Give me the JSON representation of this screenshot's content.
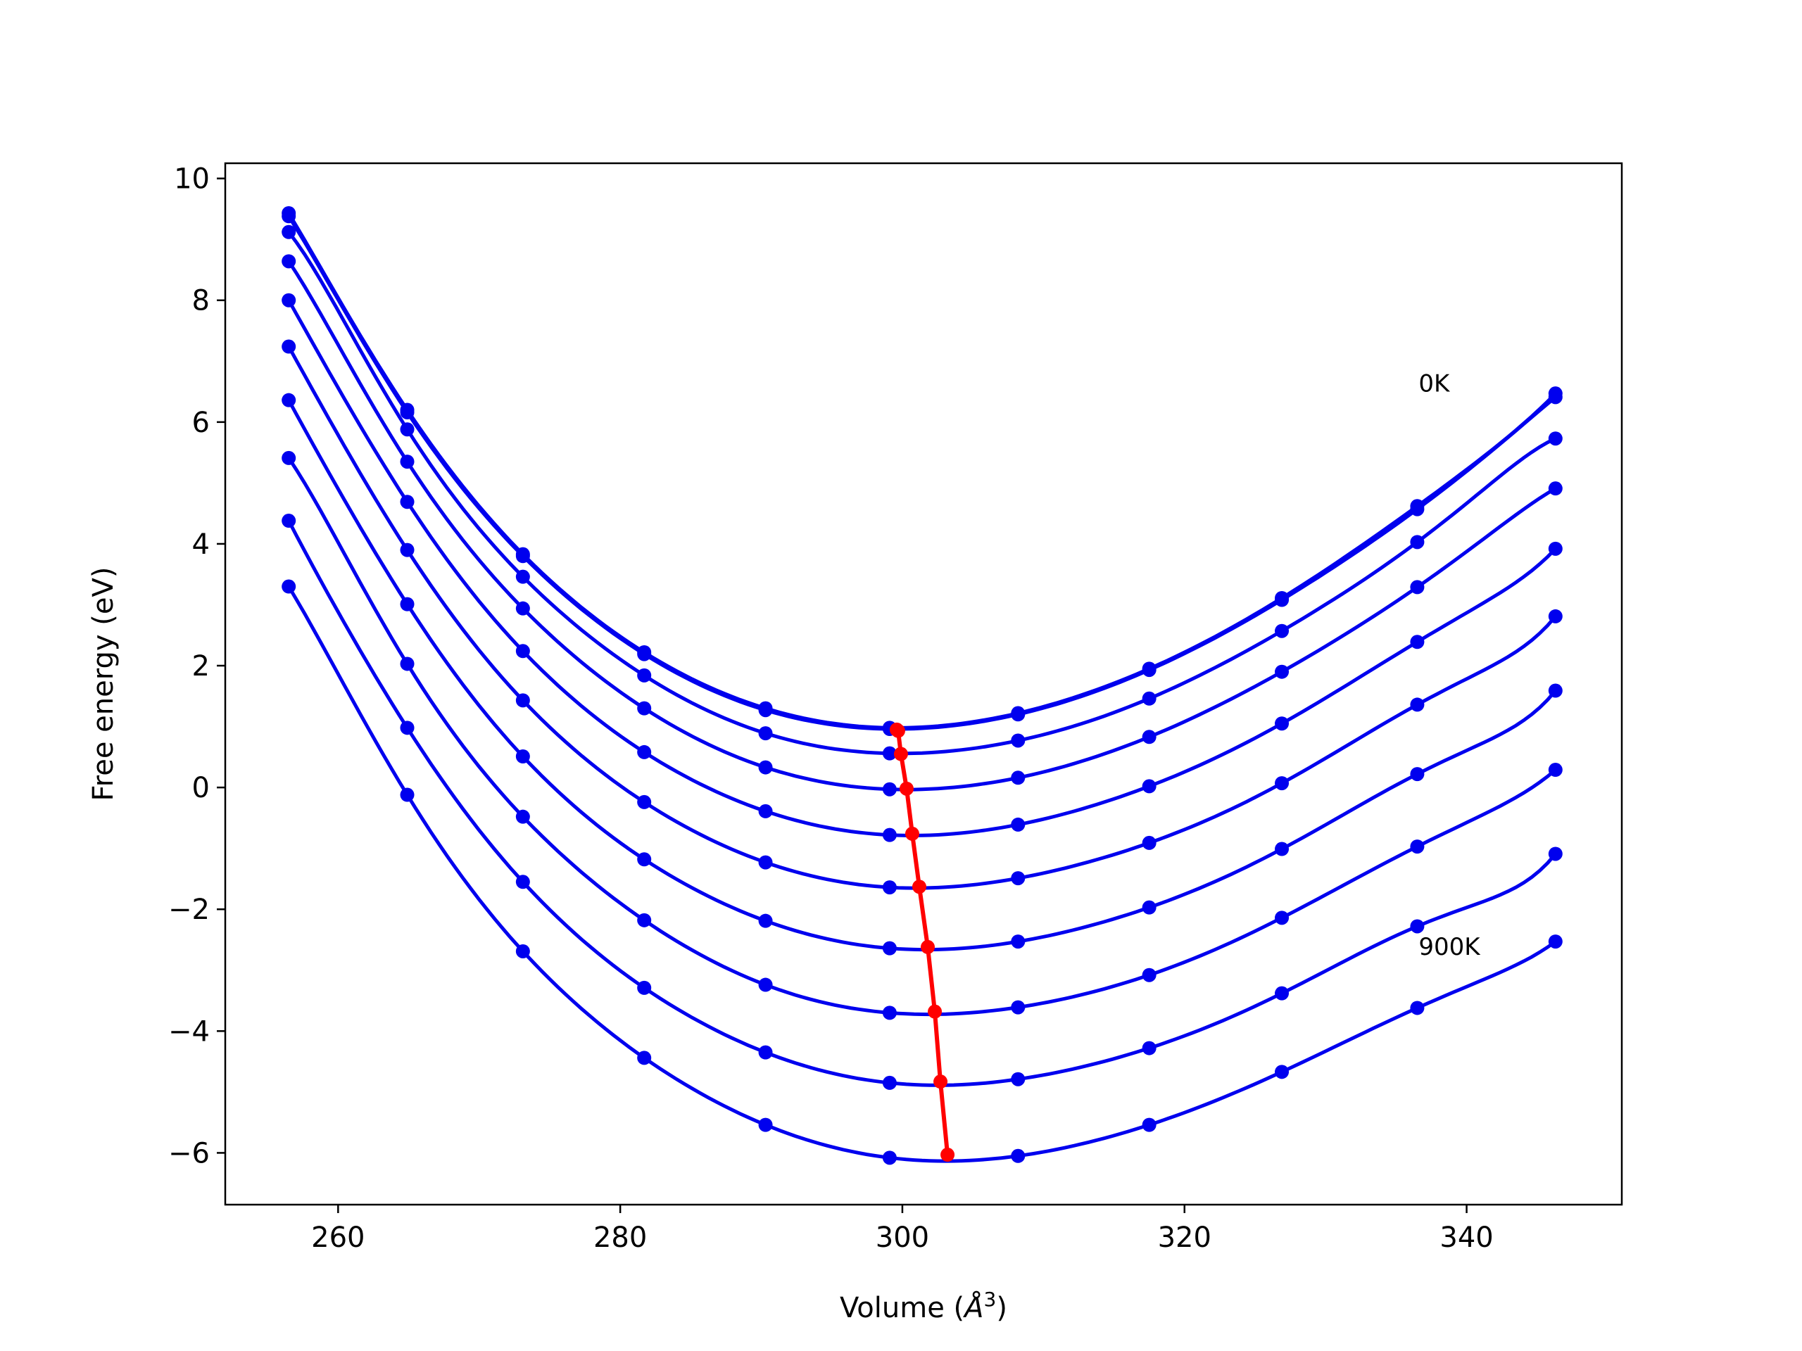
{
  "chart_data": {
    "type": "line",
    "title": "",
    "xlabel": "Volume (",
    "xlabel_symbol": "Å",
    "xlabel_exponent": "3",
    "xlabel_close": ")",
    "ylabel": "Free energy (eV)",
    "xlim": [
      252,
      351
    ],
    "ylim": [
      -6.85,
      10.25
    ],
    "xticks": [
      260,
      280,
      300,
      320,
      340
    ],
    "yticks": [
      -6,
      -4,
      -2,
      0,
      2,
      4,
      6,
      8,
      10
    ],
    "ytick_labels": [
      "−6",
      "−4",
      "−2",
      "0",
      "2",
      "4",
      "6",
      "8",
      "10"
    ],
    "grid": false,
    "colors": {
      "curves": "#0000ee",
      "points": "#0000ee",
      "minima": "#ff0000"
    },
    "x": [
      256.5,
      264.9,
      273.1,
      281.7,
      290.3,
      299.1,
      308.2,
      317.5,
      326.9,
      336.5,
      346.3
    ],
    "annotations": [
      {
        "text": "0K",
        "x": 336.6,
        "y": 6.5
      },
      {
        "text": "900K",
        "x": 336.6,
        "y": -2.75
      }
    ],
    "series": [
      {
        "points": [
          9.43,
          6.2,
          3.83,
          2.22,
          1.3,
          0.98,
          1.22,
          1.95,
          3.11,
          4.62,
          6.47
        ],
        "min": [
          299.6,
          0.95
        ]
      },
      {
        "points": [
          9.38,
          6.16,
          3.8,
          2.19,
          1.27,
          0.96,
          1.2,
          1.93,
          3.08,
          4.57,
          6.41
        ],
        "min": [
          299.7,
          0.93
        ]
      },
      {
        "points": [
          9.12,
          5.88,
          3.46,
          1.84,
          0.89,
          0.56,
          0.77,
          1.46,
          2.57,
          4.03,
          5.73
        ],
        "min": [
          299.9,
          0.55
        ]
      },
      {
        "points": [
          8.64,
          5.35,
          2.94,
          1.3,
          0.33,
          -0.03,
          0.16,
          0.83,
          1.9,
          3.29,
          4.91
        ],
        "min": [
          300.3,
          -0.02
        ]
      },
      {
        "points": [
          8.0,
          4.69,
          2.24,
          0.58,
          -0.39,
          -0.78,
          -0.61,
          0.02,
          1.05,
          2.39,
          3.92
        ],
        "min": [
          300.7,
          -0.76
        ]
      },
      {
        "points": [
          7.24,
          3.9,
          1.43,
          -0.24,
          -1.23,
          -1.64,
          -1.49,
          -0.91,
          0.07,
          1.36,
          2.81
        ],
        "min": [
          301.2,
          -1.63
        ]
      },
      {
        "points": [
          6.36,
          3.01,
          0.51,
          -1.18,
          -2.19,
          -2.64,
          -2.53,
          -1.97,
          -1.01,
          0.22,
          1.59
        ],
        "min": [
          301.8,
          -2.62
        ]
      },
      {
        "points": [
          5.41,
          2.03,
          -0.48,
          -2.18,
          -3.24,
          -3.7,
          -3.61,
          -3.08,
          -2.14,
          -0.97,
          0.29
        ],
        "min": [
          302.3,
          -3.68
        ]
      },
      {
        "points": [
          4.38,
          0.98,
          -1.55,
          -3.29,
          -4.35,
          -4.85,
          -4.79,
          -4.28,
          -3.38,
          -2.28,
          -1.09
        ],
        "min": [
          302.7,
          -4.83
        ]
      },
      {
        "points": [
          3.3,
          -0.12,
          -2.69,
          -4.44,
          -5.54,
          -6.08,
          -6.05,
          -5.54,
          -4.67,
          -3.62,
          -2.53
        ],
        "min": [
          303.2,
          -6.03
        ]
      }
    ]
  }
}
